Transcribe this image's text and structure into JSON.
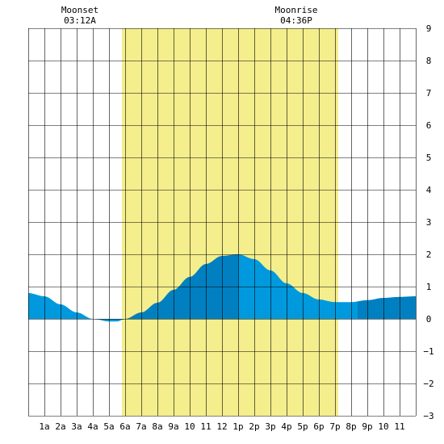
{
  "chart_data": {
    "type": "area",
    "title": "",
    "xlabel": "",
    "ylabel": "",
    "ylim": [
      -3,
      9
    ],
    "y_ticks": [
      9,
      8,
      7,
      6,
      5,
      4,
      3,
      2,
      1,
      0,
      -1,
      -2,
      -3
    ],
    "x_ticks": [
      "1a",
      "2a",
      "3a",
      "4a",
      "5a",
      "6a",
      "7a",
      "8a",
      "9a",
      "10",
      "11",
      "12",
      "1p",
      "2p",
      "3p",
      "4p",
      "5p",
      "6p",
      "7p",
      "8p",
      "9p",
      "10",
      "11"
    ],
    "grid": true,
    "daylight_hours": [
      5.8,
      19.2
    ],
    "moon_events": [
      {
        "label": "Moonset",
        "time": "03:12A",
        "hour": 3.2
      },
      {
        "label": "Moonrise",
        "time": "04:36P",
        "hour": 16.6
      }
    ],
    "series": [
      {
        "x": [
          0,
          1,
          2,
          3,
          4,
          5,
          5.5,
          6,
          7,
          8,
          9,
          10,
          11,
          12,
          13,
          14,
          15,
          16,
          17,
          18,
          19,
          20,
          21,
          22,
          23,
          24
        ],
        "y": [
          0.8,
          0.7,
          0.45,
          0.2,
          0.0,
          -0.08,
          -0.08,
          0.0,
          0.2,
          0.5,
          0.9,
          1.3,
          1.7,
          1.95,
          2.0,
          1.85,
          1.5,
          1.1,
          0.8,
          0.6,
          0.52,
          0.52,
          0.58,
          0.65,
          0.68,
          0.7
        ]
      }
    ],
    "colors": {
      "daylight": "#f4ee8c",
      "tide_light": "#0099dd",
      "tide_dark": "#0080c0",
      "grid": "#000000",
      "background": "#ffffff"
    }
  }
}
